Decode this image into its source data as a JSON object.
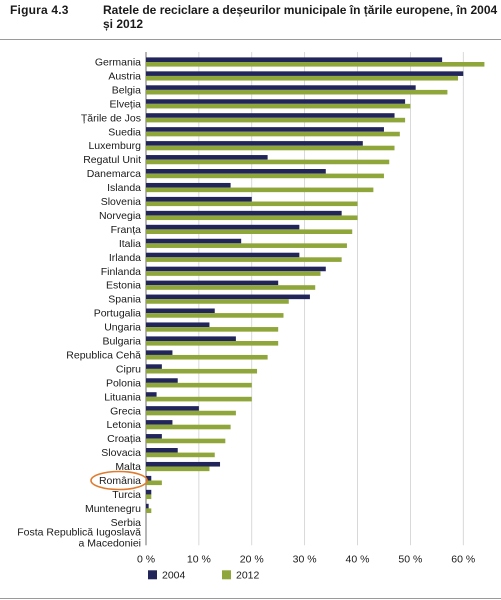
{
  "figure": {
    "label": "Figura 4.3",
    "title": "Ratele de reciclare a deșeurilor municipale în țările europene, în 2004 și 2012"
  },
  "colors": {
    "series_2004": "#22255a",
    "series_2012": "#8fa63a",
    "grid": "#cfcfcf",
    "axis": "#555555",
    "highlight": "#e07b2e"
  },
  "highlight_category": "România",
  "chart_data": {
    "type": "bar",
    "orientation": "horizontal",
    "categories": [
      "Germania",
      "Austria",
      "Belgia",
      "Elveția",
      "Țările de Jos",
      "Suedia",
      "Luxemburg",
      "Regatul Unit",
      "Danemarca",
      "Islanda",
      "Slovenia",
      "Norvegia",
      "Franța",
      "Italia",
      "Irlanda",
      "Finlanda",
      "Estonia",
      "Spania",
      "Portugalia",
      "Ungaria",
      "Bulgaria",
      "Republica Cehă",
      "Cipru",
      "Polonia",
      "Lituania",
      "Grecia",
      "Letonia",
      "Croația",
      "Slovacia",
      "Malta",
      "România",
      "Turcia",
      "Muntenegru",
      "Serbia",
      "Fosta Republică Iugoslavă a Macedoniei"
    ],
    "series": [
      {
        "name": "2004",
        "values": [
          56,
          60,
          51,
          49,
          47,
          45,
          41,
          23,
          34,
          16,
          20,
          37,
          29,
          18,
          29,
          34,
          25,
          31,
          13,
          12,
          17,
          5,
          3,
          6,
          2,
          10,
          5,
          3,
          6,
          14,
          1,
          1,
          0.5,
          0,
          0
        ]
      },
      {
        "name": "2012",
        "values": [
          64,
          59,
          57,
          50,
          49,
          48,
          47,
          46,
          45,
          43,
          40,
          40,
          39,
          38,
          37,
          33,
          32,
          27,
          26,
          25,
          25,
          23,
          21,
          20,
          20,
          17,
          16,
          15,
          13,
          12,
          3,
          1,
          1,
          0,
          0
        ]
      }
    ],
    "xlim": [
      0,
      66
    ],
    "xticks": [
      0,
      10,
      20,
      30,
      40,
      50,
      60
    ],
    "xtick_labels": [
      "0 %",
      "10 %",
      "20 %",
      "30 %",
      "40 %",
      "50 %",
      "60 %"
    ],
    "legend": {
      "position": "bottom",
      "entries": [
        "2004",
        "2012"
      ]
    },
    "grid": true
  }
}
